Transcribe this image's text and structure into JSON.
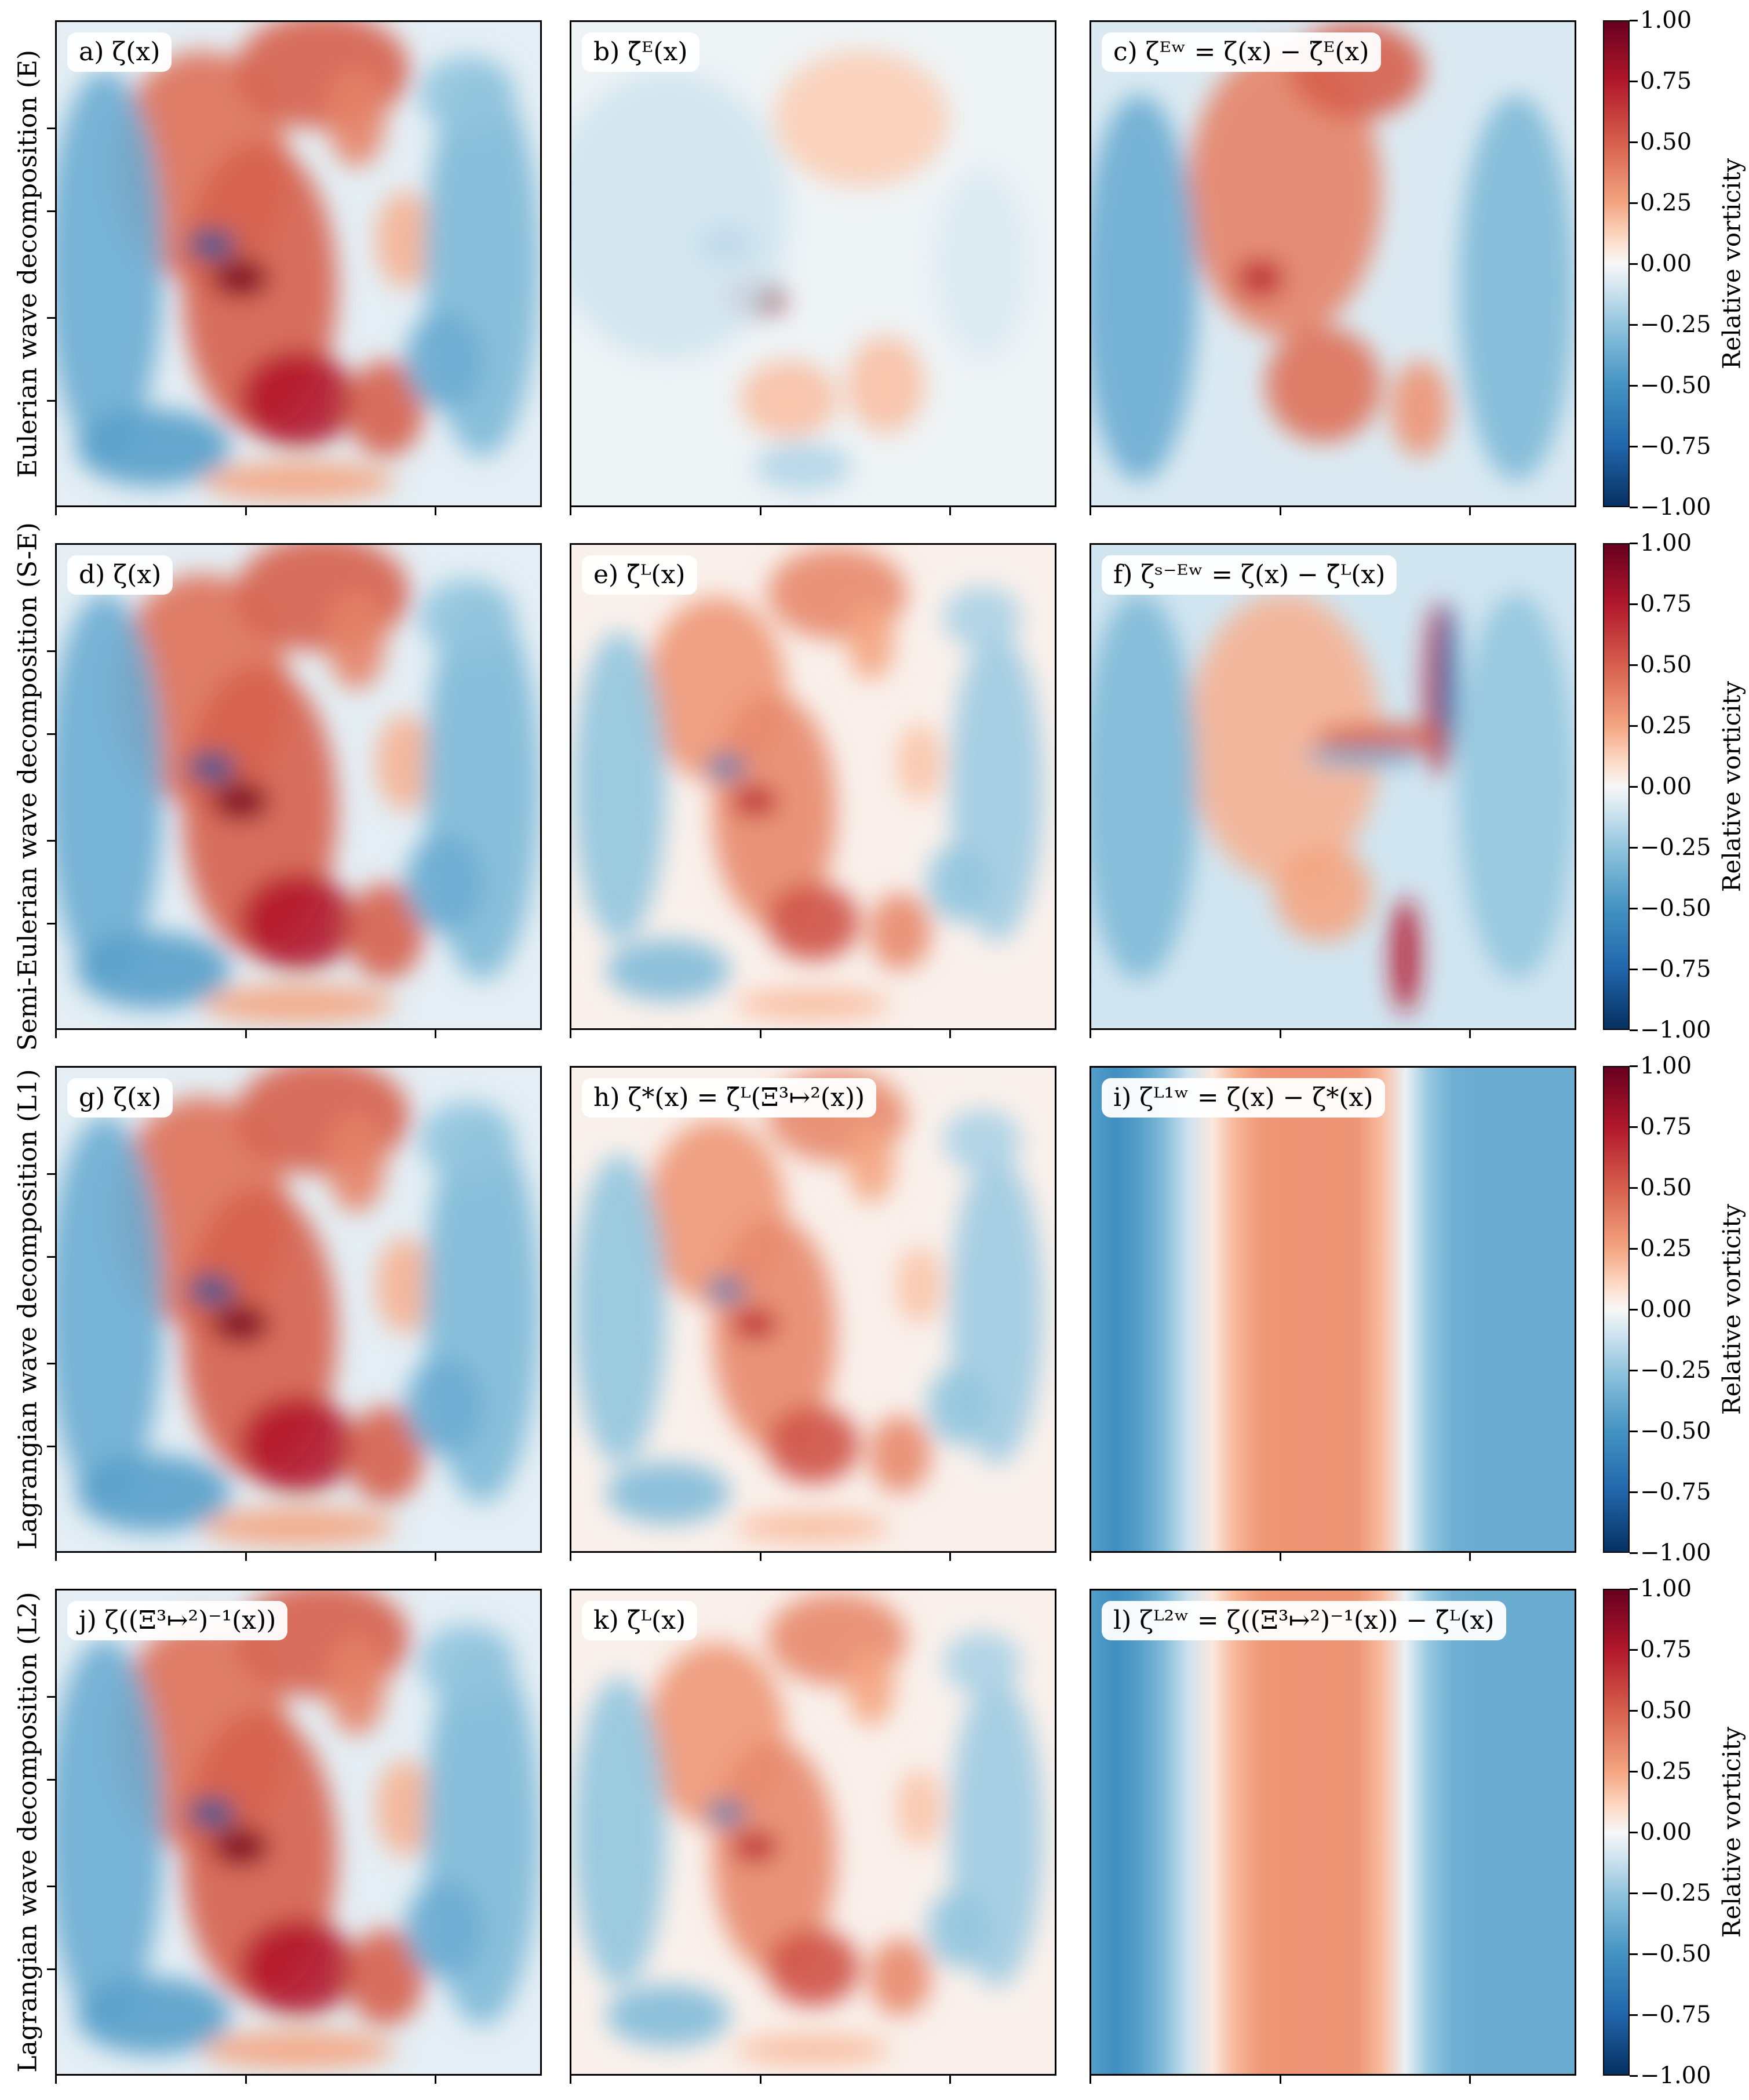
{
  "colormap": {
    "name": "RdBu_r",
    "stops": [
      "#053061",
      "#2166ac",
      "#4393c3",
      "#92c5de",
      "#d1e5f0",
      "#f7f7f7",
      "#fddbc7",
      "#f4a582",
      "#d6604d",
      "#b2182b",
      "#67001f"
    ],
    "vmin": -1.0,
    "vmax": 1.0
  },
  "rows": [
    {
      "label": "Eulerian wave decomposition (E)",
      "panels": [
        {
          "label": "a) ζ(x)",
          "field": "full"
        },
        {
          "label": "b) ζ̄ᴱ(x)",
          "field": "eulerian_mean"
        },
        {
          "label": "c) ζᴱʷ = ζ(x) − ζ̄ᴱ(x)",
          "field": "eulerian_wave"
        }
      ],
      "colorbar_label": "Relative vorticity"
    },
    {
      "label": "Semi-Eulerian wave decomposition (S-E)",
      "panels": [
        {
          "label": "d) ζ(x)",
          "field": "full"
        },
        {
          "label": "e) ζ̄ᴸ(x)",
          "field": "lagrangian_mean"
        },
        {
          "label": "f) ζˢ⁻ᴱʷ = ζ(x) − ζ̄ᴸ(x)",
          "field": "semi_eulerian_wave"
        }
      ],
      "colorbar_label": "Relative vorticity"
    },
    {
      "label": "Lagrangian wave decomposition (L1)",
      "panels": [
        {
          "label": "g) ζ(x)",
          "field": "full"
        },
        {
          "label": "h) ζ*(x) = ζ̄ᴸ(Ξ³↦²(x))",
          "field": "lagrangian_mean"
        },
        {
          "label": "i) ζᴸ¹ʷ = ζ(x) − ζ*(x)",
          "field": "lagrangian_wave"
        }
      ],
      "colorbar_label": "Relative vorticity"
    },
    {
      "label": "Lagrangian wave decomposition (L2)",
      "panels": [
        {
          "label": "j) ζ((Ξ³↦²)⁻¹(x))",
          "field": "full"
        },
        {
          "label": "k) ζ̄ᴸ(x)",
          "field": "lagrangian_mean"
        },
        {
          "label": "l) ζᴸ²ʷ = ζ((Ξ³↦²)⁻¹(x)) − ζ̄ᴸ(x)",
          "field": "lagrangian_wave"
        }
      ],
      "colorbar_label": "Relative vorticity"
    }
  ],
  "colorbar_ticks": [
    "1.00",
    "0.75",
    "0.50",
    "0.25",
    "0.00",
    "−0.25",
    "−0.50",
    "−0.75",
    "−1.00"
  ],
  "chart_data": {
    "type": "heatmap",
    "title": "",
    "colorbar": {
      "label": "Relative vorticity",
      "range": [
        -1.0,
        1.0
      ],
      "ticks": [
        1.0,
        0.75,
        0.5,
        0.25,
        0.0,
        -0.25,
        -0.5,
        -0.75,
        -1.0
      ]
    },
    "layout": "4 rows × 3 columns",
    "x_ticks_labeled": false,
    "y_ticks_labeled": false
  }
}
